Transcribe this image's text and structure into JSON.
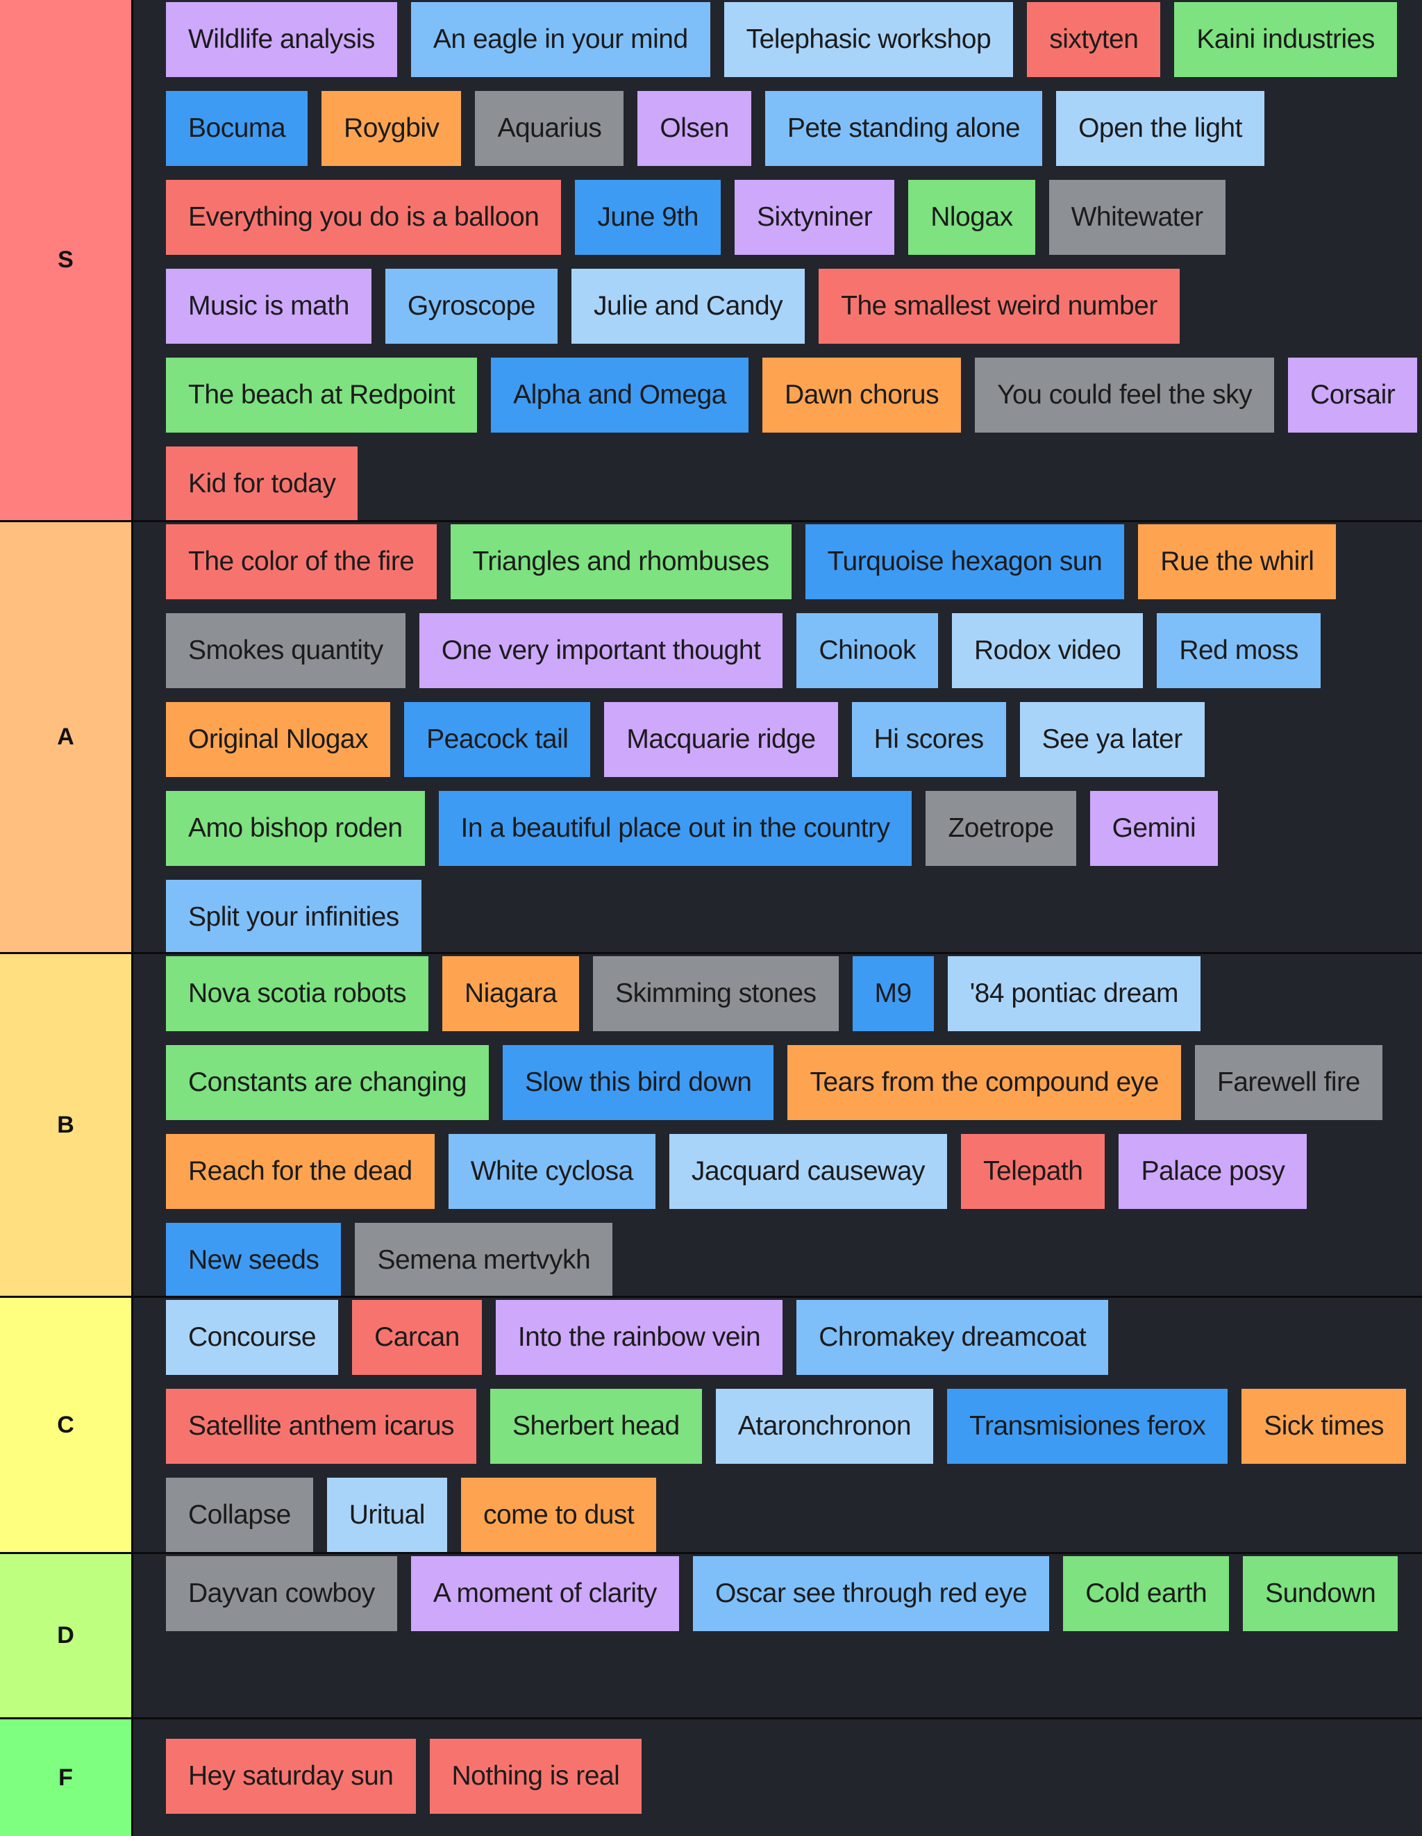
{
  "tiers": [
    {
      "label": "S",
      "color": "#ff7f7f",
      "items": [
        {
          "text": "Wildlife analysis",
          "color": "#cda8fb"
        },
        {
          "text": "An eagle in your mind",
          "color": "#7fbff9"
        },
        {
          "text": "Telephasic workshop",
          "color": "#a9d4fa"
        },
        {
          "text": "sixtyten",
          "color": "#f7746e"
        },
        {
          "text": "Kaini industries",
          "color": "#7de27f"
        },
        {
          "text": "Bocuma",
          "color": "#3e9bf4"
        },
        {
          "text": "Roygbiv",
          "color": "#fea451"
        },
        {
          "text": "Aquarius",
          "color": "#8d9196"
        },
        {
          "text": "Olsen",
          "color": "#cda8fb"
        },
        {
          "text": "Pete standing alone",
          "color": "#7fbff9"
        },
        {
          "text": "Open the light",
          "color": "#a9d4fa"
        },
        {
          "text": "Everything you do is a balloon",
          "color": "#f7746e"
        },
        {
          "text": "June 9th",
          "color": "#3e9bf4"
        },
        {
          "text": "Sixtyniner",
          "color": "#cda8fb"
        },
        {
          "text": "Nlogax",
          "color": "#7de27f"
        },
        {
          "text": "Whitewater",
          "color": "#8d9196"
        },
        {
          "text": "Music is math",
          "color": "#cda8fb"
        },
        {
          "text": "Gyroscope",
          "color": "#7fbff9"
        },
        {
          "text": "Julie and Candy",
          "color": "#a9d4fa"
        },
        {
          "text": "The smallest weird number",
          "color": "#f7746e"
        },
        {
          "text": "The beach at Redpoint",
          "color": "#7de27f"
        },
        {
          "text": "Alpha and Omega",
          "color": "#3e9bf4"
        },
        {
          "text": "Dawn chorus",
          "color": "#fea451"
        },
        {
          "text": "You could feel the sky",
          "color": "#8d9196"
        },
        {
          "text": "Corsair",
          "color": "#cda8fb"
        },
        {
          "text": "Kid for today",
          "color": "#f7746e"
        }
      ]
    },
    {
      "label": "A",
      "color": "#ffbf7f",
      "items": [
        {
          "text": "The color of the fire",
          "color": "#f7746e"
        },
        {
          "text": "Triangles and rhombuses",
          "color": "#7de27f"
        },
        {
          "text": "Turquoise hexagon sun",
          "color": "#3e9bf4"
        },
        {
          "text": "Rue the whirl",
          "color": "#fea451"
        },
        {
          "text": "Smokes quantity",
          "color": "#8d9196"
        },
        {
          "text": "One very important thought",
          "color": "#cda8fb"
        },
        {
          "text": "Chinook",
          "color": "#7fbff9"
        },
        {
          "text": "Rodox video",
          "color": "#a9d4fa"
        },
        {
          "text": "Red moss",
          "color": "#7fbff9"
        },
        {
          "text": "Original Nlogax",
          "color": "#fea451"
        },
        {
          "text": "Peacock tail",
          "color": "#3e9bf4"
        },
        {
          "text": "Macquarie ridge",
          "color": "#cda8fb"
        },
        {
          "text": "Hi scores",
          "color": "#7fbff9"
        },
        {
          "text": "See ya later",
          "color": "#a9d4fa"
        },
        {
          "text": "Amo bishop roden",
          "color": "#7de27f"
        },
        {
          "text": "In a beautiful place out in the country",
          "color": "#3e9bf4"
        },
        {
          "text": "Zoetrope",
          "color": "#8d9196"
        },
        {
          "text": "Gemini",
          "color": "#cda8fb"
        },
        {
          "text": "Split your infinities",
          "color": "#7fbff9"
        }
      ]
    },
    {
      "label": "B",
      "color": "#ffdf7f",
      "items": [
        {
          "text": "Nova scotia robots",
          "color": "#7de27f"
        },
        {
          "text": "Niagara",
          "color": "#fea451"
        },
        {
          "text": "Skimming stones",
          "color": "#8d9196"
        },
        {
          "text": "M9",
          "color": "#3e9bf4"
        },
        {
          "text": "'84 pontiac dream",
          "color": "#a9d4fa"
        },
        {
          "text": "Constants are changing",
          "color": "#7de27f"
        },
        {
          "text": "Slow this bird down",
          "color": "#3e9bf4"
        },
        {
          "text": "Tears from the compound eye",
          "color": "#fea451"
        },
        {
          "text": "Farewell fire",
          "color": "#8d9196"
        },
        {
          "text": "Reach for the dead",
          "color": "#fea451"
        },
        {
          "text": "White cyclosa",
          "color": "#7fbff9"
        },
        {
          "text": "Jacquard causeway",
          "color": "#a9d4fa"
        },
        {
          "text": "Telepath",
          "color": "#f7746e"
        },
        {
          "text": "Palace posy",
          "color": "#cda8fb"
        },
        {
          "text": "New seeds",
          "color": "#3e9bf4"
        },
        {
          "text": "Semena mertvykh",
          "color": "#8d9196"
        }
      ]
    },
    {
      "label": "C",
      "color": "#ffff7f",
      "items": [
        {
          "text": "Concourse",
          "color": "#a9d4fa"
        },
        {
          "text": "Carcan",
          "color": "#f7746e"
        },
        {
          "text": "Into the rainbow vein",
          "color": "#cda8fb"
        },
        {
          "text": "Chromakey dreamcoat",
          "color": "#7fbff9"
        },
        {
          "text": "Satellite anthem icarus",
          "color": "#f7746e"
        },
        {
          "text": "Sherbert head",
          "color": "#7de27f"
        },
        {
          "text": "Ataronchronon",
          "color": "#a9d4fa"
        },
        {
          "text": "Transmisiones ferox",
          "color": "#3e9bf4"
        },
        {
          "text": "Sick times",
          "color": "#fea451"
        },
        {
          "text": "Collapse",
          "color": "#8d9196"
        },
        {
          "text": "Uritual",
          "color": "#a9d4fa"
        },
        {
          "text": "come to dust",
          "color": "#fea451"
        }
      ]
    },
    {
      "label": "D",
      "color": "#bfff7f",
      "items": [
        {
          "text": "Dayvan cowboy",
          "color": "#8d9196"
        },
        {
          "text": "A moment of clarity",
          "color": "#cda8fb"
        },
        {
          "text": "Oscar see through red eye",
          "color": "#7fbff9"
        },
        {
          "text": "Cold earth",
          "color": "#7de27f"
        },
        {
          "text": "Sundown",
          "color": "#7de27f"
        }
      ]
    },
    {
      "label": "F",
      "color": "#7fff7f",
      "items": [
        {
          "text": "Hey saturday sun",
          "color": "#f7746e"
        },
        {
          "text": "Nothing is real",
          "color": "#f7746e"
        }
      ]
    }
  ]
}
